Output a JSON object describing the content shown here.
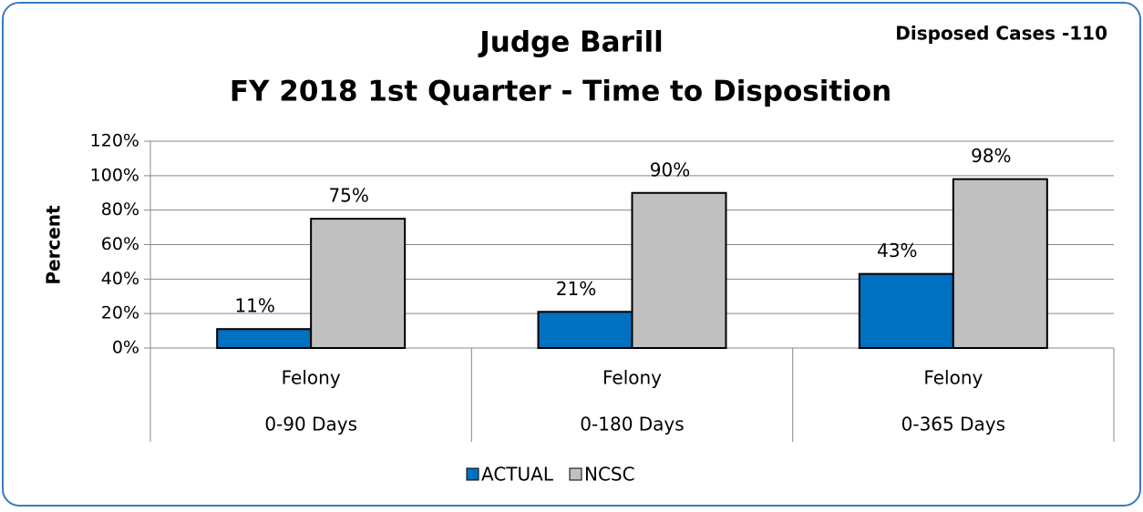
{
  "chart_data": {
    "type": "bar",
    "title": [
      "Judge Barill",
      "FY 2018  1st Quarter - Time to Disposition"
    ],
    "annotation": "Disposed Cases -110",
    "y_label": "Percent",
    "categories": [
      [
        "Felony",
        "0-90 Days"
      ],
      [
        "Felony",
        "0-180 Days"
      ],
      [
        "Felony",
        "0-365 Days"
      ]
    ],
    "series": [
      {
        "name": "ACTUAL",
        "color": "#0070c0",
        "values": [
          11,
          21,
          43
        ],
        "value_labels": [
          "11%",
          "21%",
          "43%"
        ]
      },
      {
        "name": "NCSC",
        "color": "#c0c0c0",
        "values": [
          75,
          90,
          98
        ],
        "value_labels": [
          "75%",
          "90%",
          "98%"
        ]
      }
    ],
    "ylim": [
      0,
      120
    ],
    "yticks": [
      {
        "value": 0,
        "label": "0%"
      },
      {
        "value": 20,
        "label": "20%"
      },
      {
        "value": 40,
        "label": "40%"
      },
      {
        "value": 60,
        "label": "60%"
      },
      {
        "value": 80,
        "label": "80%"
      },
      {
        "value": 100,
        "label": "100%"
      },
      {
        "value": 120,
        "label": "120%"
      }
    ],
    "grid": true,
    "legend": "bottom"
  }
}
